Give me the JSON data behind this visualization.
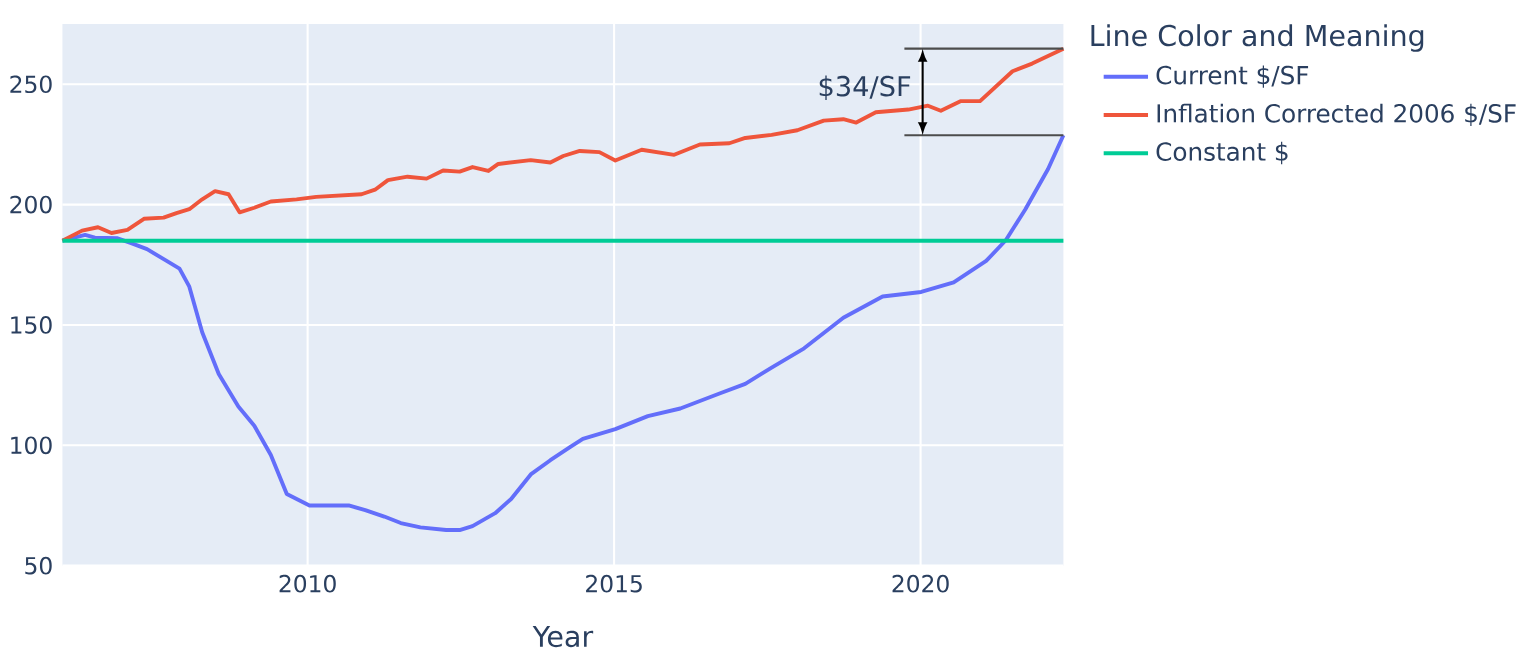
{
  "chart_data": {
    "type": "line",
    "xlabel": "Year",
    "legend_title": "Line Color and Meaning",
    "xlim": [
      2006,
      2022.33
    ],
    "xticks": [
      2010,
      2015,
      2020
    ],
    "ylim": [
      50,
      275
    ],
    "yticks": [
      50,
      100,
      150,
      200,
      250
    ],
    "grid": true,
    "legend": "right",
    "marker": "none",
    "line_style": "solid",
    "annotations": [
      {
        "text": "$34/SF",
        "x": 2022.33,
        "y": 264.8
      }
    ],
    "series": [
      {
        "name": "Current $/SF",
        "color": "#636efa",
        "x": [
          2006,
          2006.37,
          2006.53,
          2006.9,
          2007.11,
          2007.38,
          2007.7,
          2007.91,
          2008.07,
          2008.28,
          2008.55,
          2008.87,
          2009.13,
          2009.4,
          2009.66,
          2010.03,
          2010.67,
          2010.94,
          2011.25,
          2011.52,
          2011.84,
          2012.26,
          2012.48,
          2012.69,
          2013.06,
          2013.32,
          2013.64,
          2013.96,
          2014.28,
          2014.49,
          2015.02,
          2015.55,
          2016.08,
          2016.72,
          2017.14,
          2017.57,
          2018.1,
          2018.74,
          2019.38,
          2020.01,
          2020.54,
          2021.07,
          2021.39,
          2021.71,
          2022.08,
          2022.33
        ],
        "values": [
          185,
          187.4,
          186.3,
          186,
          184.1,
          181.5,
          176.6,
          173.4,
          165.9,
          147,
          129.6,
          116.1,
          108.1,
          96,
          79.8,
          75,
          75,
          73.1,
          70.4,
          67.7,
          65.9,
          64.8,
          64.8,
          66.4,
          71.8,
          77.7,
          87.9,
          93.8,
          99.2,
          102.7,
          106.7,
          112.1,
          115.3,
          121.5,
          125.5,
          132.3,
          140.3,
          153,
          161.8,
          163.7,
          167.7,
          176.6,
          185.2,
          198.1,
          214.8,
          228.8
        ]
      },
      {
        "name": "Inflation Corrected 2006 $/SF",
        "color": "#ef553b",
        "x": [
          2006,
          2006.32,
          2006.58,
          2006.8,
          2007.06,
          2007.33,
          2007.65,
          2007.86,
          2008.07,
          2008.28,
          2008.49,
          2008.71,
          2008.89,
          2009.13,
          2009.4,
          2009.82,
          2010.14,
          2010.88,
          2011.1,
          2011.31,
          2011.63,
          2011.94,
          2012.21,
          2012.48,
          2012.69,
          2012.95,
          2013.11,
          2013.64,
          2013.96,
          2014.17,
          2014.44,
          2014.76,
          2015.02,
          2015.45,
          2015.98,
          2016.4,
          2016.88,
          2017.14,
          2017.57,
          2017.99,
          2018.42,
          2018.74,
          2018.95,
          2019.27,
          2019.8,
          2020.12,
          2020.33,
          2020.65,
          2020.97,
          2021.5,
          2021.82,
          2022.33
        ],
        "values": [
          185,
          189.2,
          190.6,
          188.2,
          189.5,
          194.1,
          194.6,
          196.5,
          198.1,
          202.2,
          205.6,
          204.3,
          196.8,
          198.7,
          201.3,
          202.2,
          203.2,
          204.3,
          206.2,
          210.2,
          211.6,
          210.8,
          214.2,
          213.7,
          215.6,
          214,
          216.9,
          218.5,
          217.5,
          220.2,
          222.3,
          221.8,
          218.3,
          222.8,
          220.7,
          225,
          225.5,
          227.7,
          229,
          230.9,
          234.9,
          235.5,
          234.1,
          238.4,
          239.5,
          241.1,
          239,
          243,
          243,
          255.4,
          258.6,
          264.8
        ]
      },
      {
        "name": "Constant $",
        "color": "#00cc96",
        "x": [
          2006,
          2022.33
        ],
        "values": [
          185,
          185
        ]
      }
    ]
  }
}
